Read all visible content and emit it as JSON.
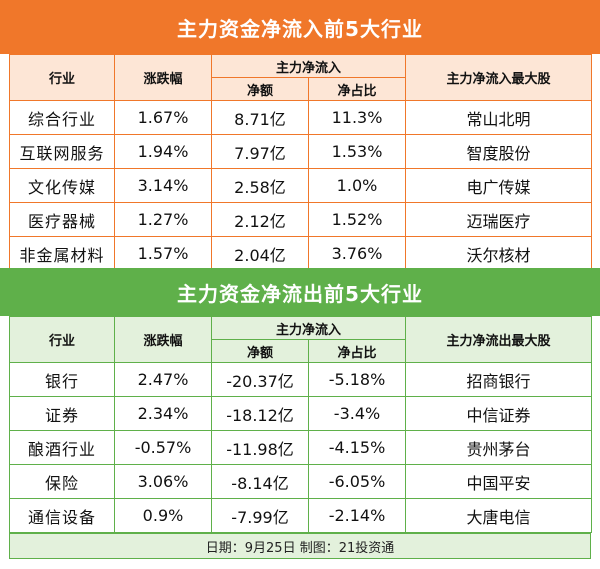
{
  "inflow": {
    "title": "主力资金净流入前5大行业",
    "headers": {
      "industry": "行业",
      "change": "涨跌幅",
      "main_flow": "主力净流入",
      "net_amount": "净额",
      "net_ratio": "净占比",
      "top_stock": "主力净流入最大股"
    },
    "rows": [
      {
        "industry": "综合行业",
        "change": "1.67%",
        "net_amount": "8.71亿",
        "net_ratio": "11.3%",
        "top_stock": "常山北明"
      },
      {
        "industry": "互联网服务",
        "change": "1.94%",
        "net_amount": "7.97亿",
        "net_ratio": "1.53%",
        "top_stock": "智度股份"
      },
      {
        "industry": "文化传媒",
        "change": "3.14%",
        "net_amount": "2.58亿",
        "net_ratio": "1.0%",
        "top_stock": "电广传媒"
      },
      {
        "industry": "医疗器械",
        "change": "1.27%",
        "net_amount": "2.12亿",
        "net_ratio": "1.52%",
        "top_stock": "迈瑞医疗"
      },
      {
        "industry": "非金属材料",
        "change": "1.57%",
        "net_amount": "2.04亿",
        "net_ratio": "3.76%",
        "top_stock": "沃尔核材"
      }
    ]
  },
  "outflow": {
    "title": "主力资金净流出前5大行业",
    "headers": {
      "industry": "行业",
      "change": "涨跌幅",
      "main_flow": "主力净流入",
      "net_amount": "净额",
      "net_ratio": "净占比",
      "top_stock": "主力净流出最大股"
    },
    "rows": [
      {
        "industry": "银行",
        "change": "2.47%",
        "net_amount": "-20.37亿",
        "net_ratio": "-5.18%",
        "top_stock": "招商银行"
      },
      {
        "industry": "证券",
        "change": "2.34%",
        "net_amount": "-18.12亿",
        "net_ratio": "-3.4%",
        "top_stock": "中信证券"
      },
      {
        "industry": "酿酒行业",
        "change": "-0.57%",
        "net_amount": "-11.98亿",
        "net_ratio": "-4.15%",
        "top_stock": "贵州茅台"
      },
      {
        "industry": "保险",
        "change": "3.06%",
        "net_amount": "-8.14亿",
        "net_ratio": "-6.05%",
        "top_stock": "中国平安"
      },
      {
        "industry": "通信设备",
        "change": "0.9%",
        "net_amount": "-7.99亿",
        "net_ratio": "-2.14%",
        "top_stock": "大唐电信"
      }
    ]
  },
  "footer": "日期：9月25日  制图：21投资通",
  "colors": {
    "inflow_accent": "#f0772a",
    "outflow_accent": "#5fb04a"
  }
}
